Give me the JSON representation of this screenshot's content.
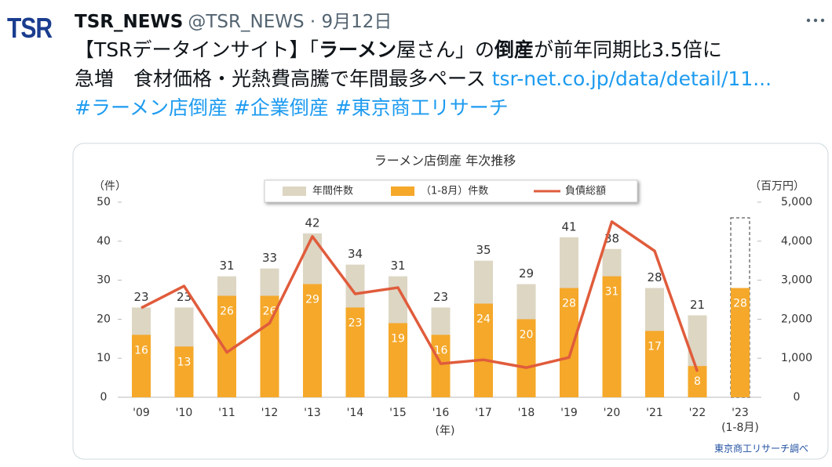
{
  "tweet": {
    "logo": "TSR",
    "name": "TSR_NEWS",
    "meta": "@TSR_NEWS · 9月12日",
    "lines": [
      [
        {
          "text": "【TSRデータインサイト】「"
        },
        {
          "text": "ラーメン",
          "bold": true
        },
        {
          "text": "屋さん」の"
        },
        {
          "text": "倒産",
          "bold": true
        },
        {
          "text": "が前年同期比3.5倍に"
        }
      ],
      [
        {
          "text": "急増　食材価格・光熱費高騰で年間最多ペース "
        },
        {
          "text": "tsr-net.co.jp/data/detail/11...",
          "link": true
        }
      ],
      [
        {
          "text": "#ラーメン店倒産",
          "link": true
        },
        {
          "text": " "
        },
        {
          "text": "#企業倒産",
          "link": true
        },
        {
          "text": " "
        },
        {
          "text": "#東京商工リサーチ",
          "link": true
        }
      ]
    ]
  },
  "chart_data": {
    "type": "bar_line",
    "title": "ラーメン店倒産  年次推移",
    "y_unit": "（件）",
    "y2_unit": "（百万円）",
    "x_label": "(年)",
    "annotation": "(1-8月)",
    "source": "東京商工リサーチ調べ",
    "categories": [
      "'09",
      "'10",
      "'11",
      "'12",
      "'13",
      "'14",
      "'15",
      "'16",
      "'17",
      "'18",
      "'19",
      "'20",
      "'21",
      "'22",
      "'23"
    ],
    "series": [
      {
        "name": "年間件数",
        "color": "#ddd6c3",
        "values": [
          23,
          23,
          31,
          33,
          42,
          34,
          31,
          23,
          35,
          29,
          41,
          38,
          28,
          21,
          null
        ]
      },
      {
        "name": "（1-8月）件数",
        "color": "#f5a82a",
        "values": [
          16,
          13,
          26,
          26,
          29,
          23,
          19,
          16,
          24,
          20,
          28,
          31,
          17,
          8,
          28
        ]
      },
      {
        "name": "負債総額",
        "color": "#e05c3c",
        "axis": "y2",
        "values": [
          2290,
          2850,
          1150,
          1900,
          4120,
          2650,
          2810,
          860,
          960,
          760,
          1020,
          4500,
          3750,
          660,
          null
        ]
      }
    ],
    "ylim": [
      0,
      50
    ],
    "yticks": [
      0,
      10,
      20,
      30,
      40,
      50
    ],
    "y2lim": [
      0,
      5000
    ],
    "y2ticks": [
      0,
      {
        "value": 1000,
        "label": "1,000"
      },
      {
        "value": 2000,
        "label": "2,000"
      },
      {
        "value": 3000,
        "label": "3,000"
      },
      {
        "value": 4000,
        "label": "4,000"
      },
      {
        "value": 5000,
        "label": "5,000"
      }
    ]
  }
}
